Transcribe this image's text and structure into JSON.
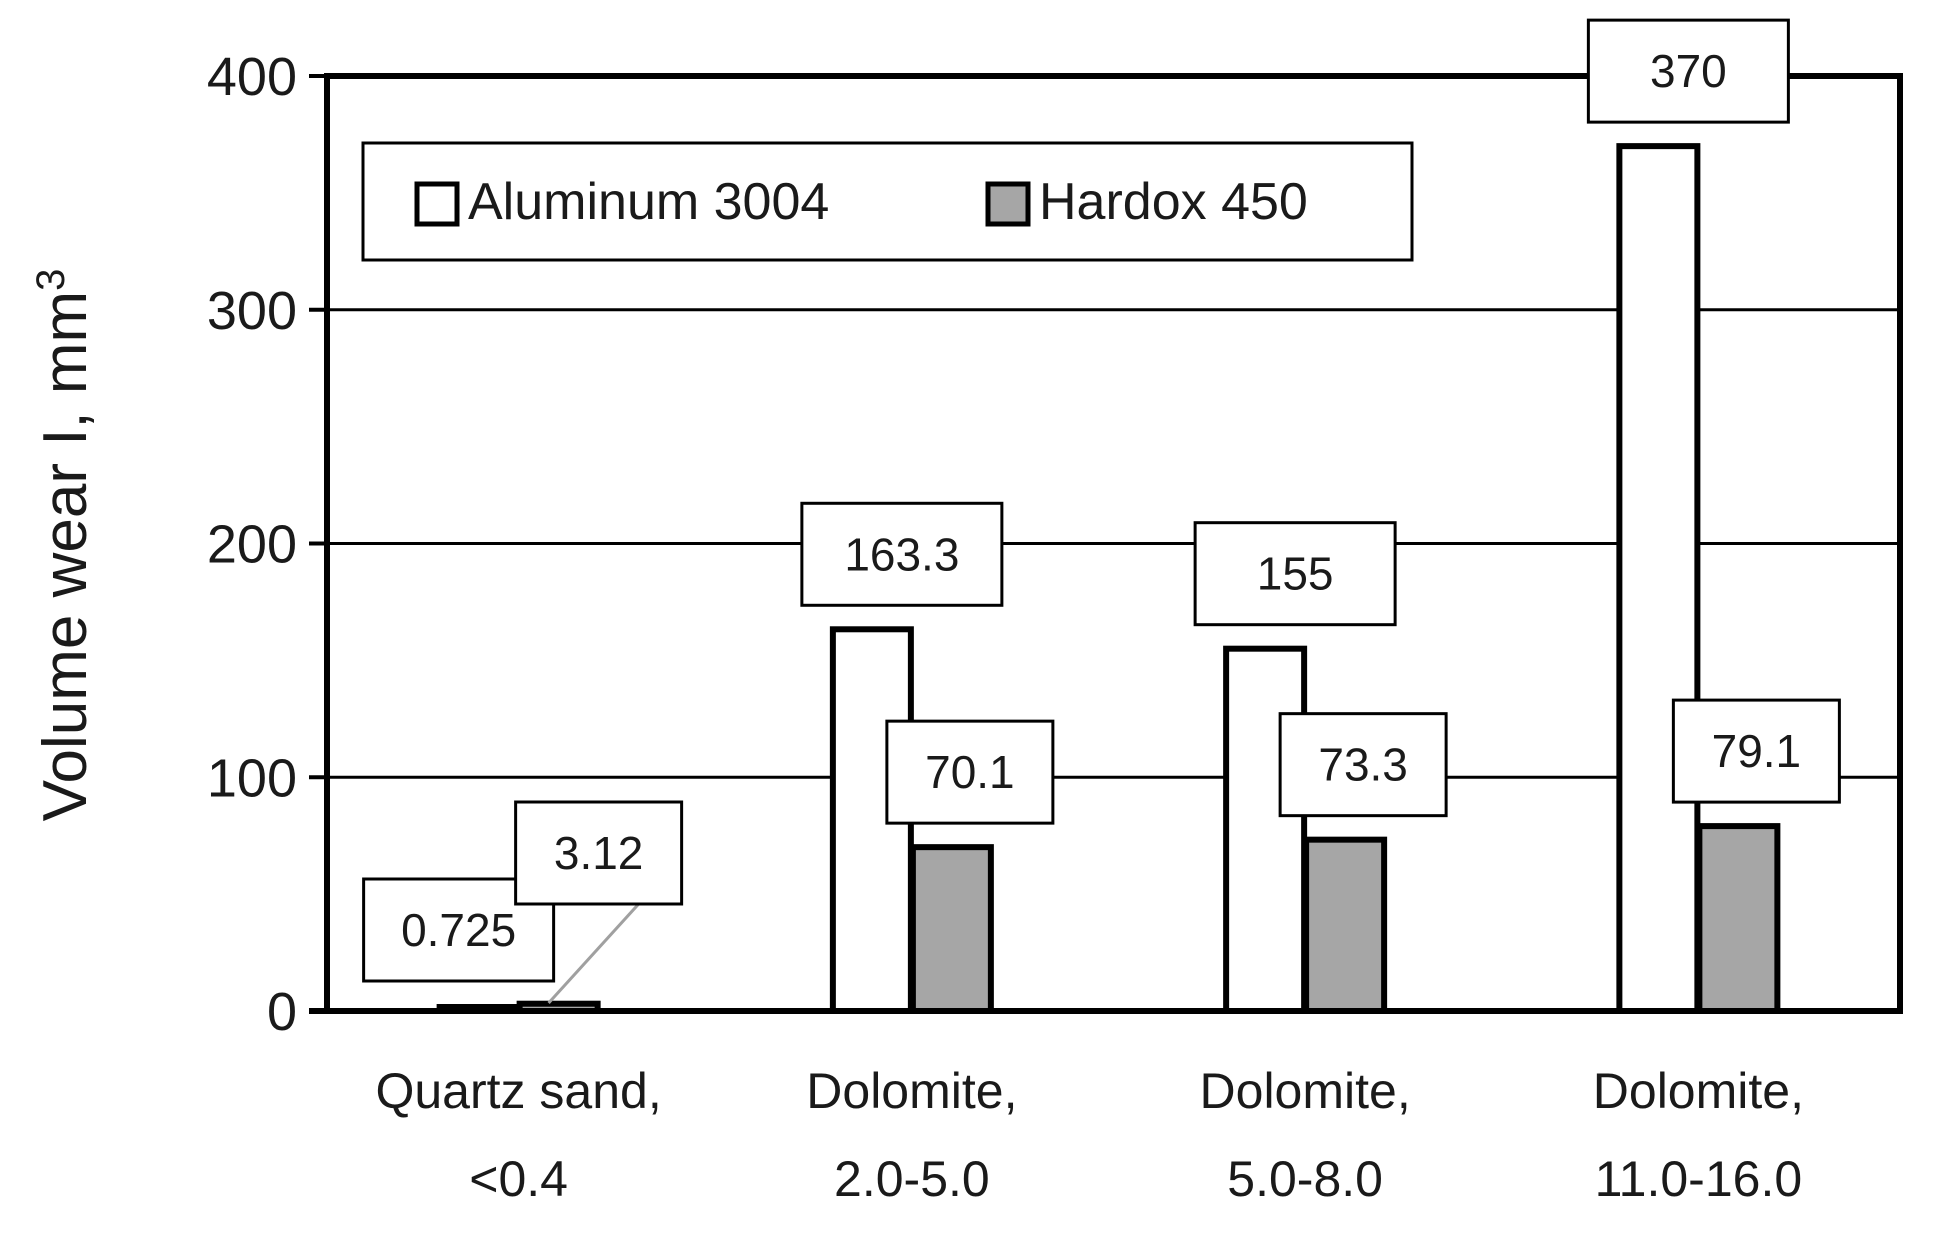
{
  "chart_data": {
    "type": "bar",
    "categories": [
      [
        "Quartz sand,",
        "<0.4"
      ],
      [
        "Dolomite,",
        "2.0-5.0"
      ],
      [
        "Dolomite,",
        "5.0-8.0"
      ],
      [
        "Dolomite,",
        "11.0-16.0"
      ]
    ],
    "series": [
      {
        "name": "Aluminum 3004",
        "values": [
          0.725,
          163.3,
          155,
          370
        ],
        "labels": [
          "0.725",
          "163.3",
          "155",
          "370"
        ],
        "color": "#ffffff"
      },
      {
        "name": "Hardox 450",
        "values": [
          3.12,
          70.1,
          73.3,
          79.1
        ],
        "labels": [
          "3.12",
          "70.1",
          "73.3",
          "79.1"
        ],
        "color": "#a6a6a6"
      }
    ],
    "ylabel": "Volume wear I, mm",
    "ylabel_superscript": "3",
    "ylim": [
      0,
      400
    ],
    "yticks": [
      "0",
      "100",
      "200",
      "300",
      "400"
    ],
    "grid": true,
    "legend_position": "top-left"
  }
}
